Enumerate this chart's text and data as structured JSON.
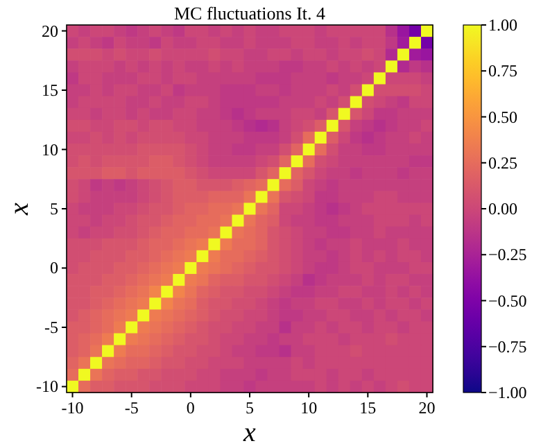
{
  "chart_data": {
    "type": "heatmap",
    "title": "MC fluctuations It. 4",
    "xlabel": "x",
    "ylabel": "x",
    "clim": [
      -1,
      1
    ],
    "cticks": [
      {
        "value": 1,
        "label": "1.00"
      },
      {
        "value": 0.75,
        "label": "0.75"
      },
      {
        "value": 0.5,
        "label": "0.50"
      },
      {
        "value": 0.25,
        "label": "0.25"
      },
      {
        "value": 0,
        "label": "0.00"
      },
      {
        "value": -0.25,
        "label": "−0.25"
      },
      {
        "value": -0.5,
        "label": "−0.50"
      },
      {
        "value": -0.75,
        "label": "−0.75"
      },
      {
        "value": -1,
        "label": "−1.00"
      }
    ],
    "categories": [
      "-10",
      null,
      null,
      null,
      null,
      "-5",
      null,
      null,
      null,
      null,
      "0",
      null,
      null,
      null,
      null,
      "5",
      null,
      null,
      null,
      null,
      "10",
      null,
      null,
      null,
      null,
      "15",
      null,
      null,
      null,
      null,
      "20"
    ],
    "y_categories": [
      "20",
      null,
      null,
      null,
      null,
      "15",
      null,
      null,
      null,
      null,
      "10",
      null,
      null,
      null,
      null,
      "5",
      null,
      null,
      null,
      null,
      "0",
      null,
      null,
      null,
      null,
      "-5",
      null,
      null,
      null,
      null,
      "-10"
    ],
    "cells": [
      [
        0,
        -0.05,
        0,
        0,
        -0.05,
        -0.1,
        -0.05,
        0,
        -0.05,
        -0.1,
        0,
        0,
        -0.05,
        0,
        -0.05,
        0,
        -0.05,
        -0.05,
        0,
        0,
        0,
        -0.05,
        0,
        0,
        0,
        0,
        0,
        -0.15,
        -0.35,
        -0.55,
        1
      ],
      [
        -0.05,
        0,
        -0.05,
        -0.1,
        0,
        -0.05,
        -0.05,
        -0.1,
        0,
        -0.05,
        -0.05,
        0,
        0,
        -0.05,
        -0.05,
        0,
        -0.05,
        -0.05,
        -0.05,
        0,
        0,
        -0.05,
        -0.05,
        0,
        -0.05,
        0,
        0,
        -0.1,
        -0.3,
        1,
        -0.55
      ],
      [
        0.05,
        0.05,
        0.05,
        0,
        0.05,
        0,
        0,
        0.05,
        0,
        0,
        0,
        0,
        0.05,
        0,
        0,
        -0.05,
        -0.05,
        0,
        0,
        -0.05,
        0,
        0,
        -0.05,
        0,
        0,
        0.05,
        0,
        -0.2,
        1,
        -0.3,
        -0.35
      ],
      [
        -0.05,
        0,
        0,
        0,
        -0.05,
        0,
        -0.05,
        0,
        -0.05,
        0,
        -0.05,
        -0.05,
        0,
        -0.05,
        0,
        -0.05,
        -0.05,
        -0.05,
        -0.1,
        -0.1,
        -0.05,
        -0.05,
        0,
        -0.05,
        0,
        -0.05,
        0,
        1,
        -0.2,
        -0.1,
        -0.15
      ],
      [
        -0.1,
        0,
        0,
        -0.05,
        -0.05,
        -0.05,
        0,
        0,
        -0.05,
        0,
        0,
        -0.05,
        -0.05,
        -0.05,
        -0.05,
        -0.05,
        -0.1,
        -0.1,
        -0.1,
        -0.05,
        -0.05,
        -0.05,
        -0.1,
        -0.05,
        -0.05,
        0,
        1,
        0,
        0,
        0,
        -0.05
      ],
      [
        -0.05,
        -0.05,
        0,
        -0.05,
        0,
        0,
        -0.05,
        -0.05,
        0,
        -0.1,
        -0.05,
        -0.05,
        -0.05,
        -0.1,
        -0.1,
        -0.1,
        -0.05,
        -0.05,
        -0.1,
        -0.05,
        -0.05,
        -0.05,
        0,
        -0.05,
        0.05,
        1,
        0.05,
        0.05,
        0.05,
        0.05,
        0
      ],
      [
        -0.05,
        0,
        0,
        0,
        0,
        -0.05,
        -0.05,
        0,
        -0.05,
        -0.05,
        0,
        0,
        -0.05,
        -0.1,
        -0.1,
        -0.1,
        -0.1,
        -0.1,
        -0.05,
        -0.05,
        -0.05,
        0,
        -0.05,
        0.05,
        1,
        0.05,
        0,
        -0.05,
        -0.1,
        0,
        0
      ],
      [
        0,
        0,
        -0.05,
        0,
        0,
        -0.05,
        0,
        -0.05,
        -0.05,
        0,
        0,
        -0.05,
        -0.05,
        -0.1,
        -0.15,
        -0.1,
        -0.05,
        -0.05,
        -0.05,
        0,
        0,
        -0.05,
        0.1,
        1,
        0.1,
        0,
        -0.1,
        -0.1,
        -0.05,
        -0.05,
        -0.05
      ],
      [
        0.05,
        0.05,
        0,
        0,
        0.05,
        0.05,
        0,
        0.05,
        0.05,
        0,
        0,
        -0.05,
        -0.05,
        -0.05,
        -0.1,
        -0.15,
        -0.2,
        -0.15,
        -0.05,
        0,
        0.05,
        0.15,
        1,
        0.1,
        -0.05,
        -0.1,
        -0.15,
        -0.1,
        -0.05,
        -0.05,
        0
      ],
      [
        0,
        0,
        0.05,
        0,
        0.05,
        0,
        0.05,
        0.05,
        0.05,
        0.05,
        0,
        0,
        -0.05,
        -0.05,
        -0.05,
        -0.1,
        -0.1,
        -0.1,
        -0.05,
        0.05,
        0.25,
        1,
        0.15,
        0,
        -0.1,
        -0.15,
        -0.1,
        -0.05,
        -0.05,
        0,
        -0.05
      ],
      [
        0.05,
        0.05,
        0.05,
        0.05,
        0.05,
        0.05,
        0.1,
        0.1,
        0.1,
        0.1,
        0.05,
        0,
        -0.05,
        -0.05,
        -0.1,
        -0.1,
        -0.05,
        -0.05,
        0.05,
        0.2,
        1,
        0.25,
        0.05,
        -0.05,
        -0.05,
        -0.1,
        -0.1,
        -0.05,
        -0.05,
        -0.05,
        -0.05
      ],
      [
        0.05,
        0.1,
        0.05,
        0.1,
        0.1,
        0.1,
        0.1,
        0.15,
        0.15,
        0.1,
        0.05,
        0,
        -0.05,
        -0.05,
        -0.05,
        -0.05,
        0,
        0.05,
        0.2,
        1,
        0.25,
        0.05,
        0,
        -0.05,
        -0.05,
        -0.05,
        -0.05,
        -0.05,
        -0.05,
        -0.1,
        -0.1
      ],
      [
        0.1,
        0.1,
        0.1,
        0.15,
        0.15,
        0.1,
        0.15,
        0.15,
        0.15,
        0.15,
        0.1,
        0.05,
        0,
        0,
        0,
        0,
        0.1,
        0.2,
        1,
        0.2,
        0.1,
        0,
        -0.05,
        -0.05,
        -0.1,
        -0.05,
        -0.05,
        -0.05,
        -0.1,
        -0.05,
        -0.05
      ],
      [
        0.05,
        0,
        -0.1,
        -0.05,
        -0.1,
        -0.05,
        0,
        0.05,
        0.1,
        0.15,
        0.15,
        0.1,
        0.1,
        0.1,
        0.15,
        0.2,
        0.25,
        1,
        0.25,
        0.15,
        0,
        -0.05,
        -0.1,
        -0.05,
        -0.05,
        -0.05,
        -0.05,
        -0.05,
        -0.05,
        -0.05,
        -0.05
      ],
      [
        0.05,
        0,
        -0.05,
        -0.05,
        -0.05,
        -0.05,
        0,
        0.05,
        0.1,
        0.15,
        0.15,
        0.15,
        0.2,
        0.2,
        0.2,
        0.3,
        1,
        0.3,
        0.1,
        0.05,
        0,
        -0.1,
        -0.1,
        -0.05,
        -0.05,
        -0.05,
        0,
        0,
        -0.05,
        -0.05,
        -0.05
      ],
      [
        0,
        -0.05,
        -0.05,
        -0.05,
        0,
        0,
        0.05,
        0.1,
        0.1,
        0.15,
        0.2,
        0.2,
        0.25,
        0.25,
        0.3,
        1,
        0.3,
        0.2,
        0,
        0,
        -0.05,
        -0.1,
        -0.15,
        -0.1,
        -0.05,
        0,
        0,
        0,
        0,
        0,
        0
      ],
      [
        0,
        0,
        -0.05,
        0,
        0,
        0.05,
        0.1,
        0.1,
        0.15,
        0.2,
        0.2,
        0.25,
        0.25,
        0.3,
        1,
        0.3,
        0.2,
        0.15,
        0,
        -0.05,
        -0.05,
        -0.1,
        -0.1,
        -0.05,
        -0.05,
        -0.05,
        0,
        0,
        0,
        -0.05,
        0
      ],
      [
        0,
        -0.05,
        0,
        0,
        0.05,
        0.05,
        0.1,
        0.15,
        0.2,
        0.2,
        0.25,
        0.25,
        0.3,
        1,
        0.3,
        0.25,
        0.2,
        0.1,
        0.05,
        0,
        -0.05,
        -0.05,
        -0.1,
        -0.1,
        -0.05,
        -0.05,
        0,
        -0.05,
        -0.05,
        -0.05,
        -0.05
      ],
      [
        0.05,
        0.05,
        0.05,
        0.1,
        0.1,
        0.1,
        0.15,
        0.2,
        0.2,
        0.25,
        0.3,
        0.35,
        1,
        0.35,
        0.25,
        0.25,
        0.2,
        0.1,
        0.05,
        0,
        -0.05,
        -0.1,
        -0.05,
        -0.05,
        0,
        -0.05,
        -0.05,
        -0.05,
        0,
        -0.05,
        -0.05
      ],
      [
        0.05,
        0.05,
        0.1,
        0.1,
        0.1,
        0.15,
        0.15,
        0.2,
        0.25,
        0.3,
        0.35,
        1,
        0.35,
        0.25,
        0.25,
        0.2,
        0.15,
        0.1,
        0.05,
        0,
        -0.05,
        -0.05,
        -0.1,
        -0.05,
        0,
        -0.05,
        0,
        -0.05,
        0,
        0,
        -0.05
      ],
      [
        0.05,
        0.1,
        0.1,
        0.1,
        0.15,
        0.15,
        0.2,
        0.25,
        0.3,
        0.35,
        1,
        0.35,
        0.3,
        0.25,
        0.2,
        0.15,
        0.1,
        0.1,
        0.05,
        0,
        -0.05,
        -0.1,
        -0.1,
        -0.05,
        0,
        0,
        -0.05,
        -0.05,
        -0.05,
        0,
        0
      ],
      [
        0.1,
        0.1,
        0.1,
        0.15,
        0.15,
        0.2,
        0.25,
        0.3,
        0.35,
        1,
        0.35,
        0.3,
        0.2,
        0.15,
        0.15,
        0.1,
        0.1,
        0.05,
        0,
        -0.05,
        -0.15,
        -0.1,
        -0.05,
        -0.05,
        -0.05,
        0,
        -0.05,
        0,
        0,
        -0.05,
        -0.05
      ],
      [
        0.1,
        0.1,
        0.15,
        0.15,
        0.2,
        0.25,
        0.3,
        0.4,
        1,
        0.4,
        0.3,
        0.2,
        0.15,
        0.1,
        0.1,
        0.05,
        0.05,
        0,
        -0.05,
        -0.1,
        -0.1,
        -0.05,
        -0.05,
        0,
        0,
        -0.05,
        -0.05,
        0,
        -0.05,
        0,
        -0.05
      ],
      [
        0.1,
        0.1,
        0.15,
        0.2,
        0.25,
        0.3,
        0.35,
        1,
        0.4,
        0.3,
        0.25,
        0.15,
        0.1,
        0.1,
        0.05,
        0.05,
        0,
        -0.05,
        -0.1,
        -0.05,
        -0.05,
        0,
        0,
        -0.05,
        -0.05,
        0,
        -0.05,
        0,
        0,
        -0.05,
        0
      ],
      [
        0.1,
        0.15,
        0.2,
        0.25,
        0.3,
        0.35,
        1,
        0.35,
        0.3,
        0.25,
        0.2,
        0.15,
        0.1,
        0.05,
        0.05,
        0,
        0,
        -0.05,
        -0.1,
        -0.1,
        -0.05,
        -0.05,
        0,
        0,
        -0.05,
        -0.05,
        0,
        -0.05,
        0,
        0,
        -0.05
      ],
      [
        0.15,
        0.15,
        0.2,
        0.25,
        0.35,
        1,
        0.35,
        0.3,
        0.25,
        0.2,
        0.15,
        0.1,
        0.05,
        0.05,
        0,
        0,
        -0.05,
        -0.05,
        -0.15,
        -0.05,
        -0.05,
        0,
        -0.05,
        0,
        0,
        -0.05,
        0,
        0,
        -0.05,
        0,
        0
      ],
      [
        0.15,
        0.2,
        0.25,
        0.35,
        1,
        0.35,
        0.3,
        0.25,
        0.2,
        0.15,
        0.1,
        0.1,
        0.05,
        0,
        0,
        -0.05,
        -0.05,
        -0.1,
        -0.05,
        -0.05,
        0,
        0,
        0,
        -0.05,
        0,
        0,
        0,
        0.05,
        0,
        0,
        0
      ],
      [
        0.15,
        0.2,
        0.3,
        1,
        0.35,
        0.25,
        0.25,
        0.2,
        0.15,
        0.1,
        0.1,
        0.05,
        0.05,
        0,
        -0.05,
        -0.05,
        -0.1,
        -0.1,
        -0.15,
        -0.05,
        -0.05,
        0,
        0,
        0,
        0.05,
        0,
        0,
        0,
        0,
        0,
        0
      ],
      [
        0.2,
        0.3,
        1,
        0.3,
        0.25,
        0.2,
        0.2,
        0.15,
        0.1,
        0.1,
        0.05,
        0.05,
        0,
        0,
        0,
        -0.05,
        -0.05,
        -0.05,
        -0.05,
        0,
        -0.05,
        0,
        0,
        0,
        0,
        0,
        0,
        0,
        0,
        0,
        0
      ],
      [
        0.25,
        1,
        0.3,
        0.2,
        0.15,
        0.15,
        0.1,
        0.1,
        0.05,
        0.05,
        0.05,
        0,
        0,
        -0.05,
        -0.05,
        -0.05,
        -0.1,
        -0.05,
        -0.05,
        0,
        0,
        0,
        -0.05,
        0,
        0,
        -0.05,
        0,
        0,
        0,
        0,
        0
      ],
      [
        1,
        0.25,
        0.15,
        0.15,
        0.1,
        0.1,
        0.1,
        0.05,
        0.05,
        0.05,
        0,
        0,
        0,
        -0.05,
        -0.05,
        -0.1,
        -0.05,
        -0.05,
        -0.05,
        -0.05,
        -0.05,
        0,
        -0.05,
        0,
        -0.05,
        0,
        -0.05,
        0,
        0.05,
        0,
        0
      ]
    ]
  }
}
